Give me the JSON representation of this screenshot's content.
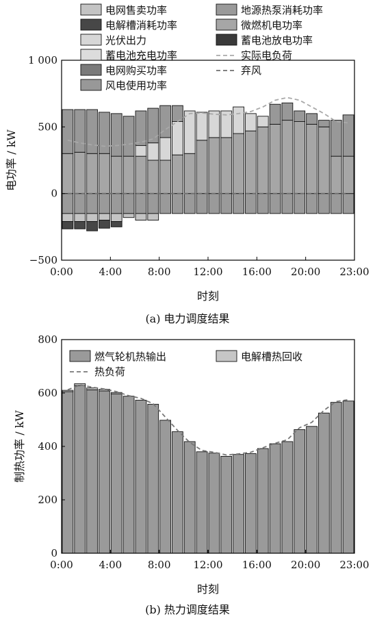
{
  "chart_data": [
    {
      "type": "bar",
      "title": "",
      "caption": "(a)  电力调度结果",
      "xlabel": "时刻",
      "ylabel": "电功率 / kW",
      "ylim": [
        -500,
        1000
      ],
      "yticks": [
        -500,
        0,
        500,
        1000
      ],
      "ytick_labels": [
        "−500",
        "0",
        "500",
        "1 000"
      ],
      "xticks": [
        0,
        4,
        8,
        12,
        16,
        20,
        23
      ],
      "xtick_labels": [
        "0:00",
        "4:00",
        "8:00",
        "12:00",
        "16:00",
        "20:00",
        "23:00"
      ],
      "hours": [
        0,
        1,
        2,
        3,
        4,
        5,
        6,
        7,
        8,
        9,
        10,
        11,
        12,
        13,
        14,
        15,
        16,
        17,
        18,
        19,
        20,
        21,
        22,
        23
      ],
      "legend_position": "top",
      "series": [
        {
          "name": "地源热泵消耗功率",
          "color": "#9a9a9a",
          "kind": "stack-neg",
          "values": [
            -150,
            -150,
            -150,
            -150,
            -150,
            -150,
            -150,
            -150,
            -150,
            -150,
            -150,
            -150,
            -150,
            -150,
            -150,
            -150,
            -150,
            -150,
            -150,
            -150,
            -150,
            -150,
            -150,
            -150
          ]
        },
        {
          "name": "电网售卖功率",
          "color": "#c4c4c4",
          "kind": "stack-neg",
          "values": [
            -60,
            -60,
            -60,
            -50,
            -60,
            -30,
            -50,
            -50,
            0,
            0,
            0,
            0,
            0,
            0,
            0,
            0,
            0,
            0,
            0,
            0,
            0,
            0,
            0,
            0
          ]
        },
        {
          "name": "电解槽消耗功率",
          "color": "#474747",
          "kind": "stack-neg",
          "values": [
            -55,
            -55,
            -70,
            -60,
            -40,
            0,
            0,
            0,
            0,
            0,
            0,
            0,
            0,
            0,
            0,
            0,
            0,
            0,
            0,
            0,
            0,
            0,
            0,
            0
          ]
        },
        {
          "name": "蓄电池充电功率",
          "color": "#dcdcdc",
          "kind": "stack-neg",
          "values": [
            0,
            0,
            0,
            0,
            0,
            0,
            0,
            0,
            0,
            0,
            0,
            0,
            0,
            0,
            0,
            0,
            0,
            0,
            0,
            0,
            0,
            0,
            0,
            0
          ]
        },
        {
          "name": "微燃机电功率",
          "color": "#a6a6a6",
          "kind": "stack-pos",
          "values": [
            300,
            310,
            300,
            300,
            280,
            280,
            280,
            250,
            250,
            290,
            300,
            400,
            420,
            420,
            450,
            470,
            500,
            520,
            550,
            540,
            520,
            500,
            280,
            280
          ]
        },
        {
          "name": "电网购买功率",
          "color": "#7a7a7a",
          "kind": "stack-pos",
          "values": [
            0,
            0,
            0,
            0,
            0,
            0,
            0,
            0,
            0,
            0,
            0,
            0,
            0,
            0,
            0,
            0,
            0,
            0,
            0,
            0,
            0,
            0,
            0,
            0
          ]
        },
        {
          "name": "蓄电池放电功率",
          "color": "#3a3a3a",
          "kind": "stack-pos",
          "values": [
            0,
            0,
            0,
            0,
            0,
            0,
            0,
            0,
            0,
            0,
            0,
            0,
            0,
            0,
            0,
            0,
            0,
            0,
            0,
            0,
            0,
            0,
            0,
            0
          ]
        },
        {
          "name": "光伏出力",
          "color": "#d7d7d7",
          "kind": "stack-pos",
          "values": [
            0,
            0,
            0,
            0,
            0,
            0,
            80,
            130,
            170,
            250,
            320,
            210,
            200,
            200,
            200,
            130,
            80,
            0,
            0,
            0,
            0,
            0,
            0,
            0
          ]
        },
        {
          "name": "风电使用功率",
          "color": "#989898",
          "kind": "stack-pos",
          "values": [
            330,
            320,
            330,
            310,
            320,
            300,
            260,
            260,
            240,
            120,
            0,
            0,
            0,
            0,
            0,
            0,
            0,
            150,
            130,
            80,
            80,
            50,
            270,
            310
          ]
        },
        {
          "name": "实际电负荷",
          "color": "#a9a9a9",
          "kind": "line",
          "values": [
            400,
            380,
            365,
            355,
            360,
            370,
            385,
            410,
            480,
            540,
            600,
            605,
            595,
            590,
            600,
            615,
            650,
            700,
            720,
            700,
            650,
            600,
            540,
            530
          ]
        },
        {
          "name": "弃风",
          "color": "#6e6e6e",
          "kind": "line",
          "values": [
            0,
            0,
            0,
            0,
            0,
            0,
            0,
            0,
            0,
            0,
            0,
            0,
            0,
            0,
            0,
            0,
            0,
            0,
            0,
            0,
            0,
            0,
            0,
            0
          ]
        }
      ]
    },
    {
      "type": "bar",
      "title": "",
      "caption": "(b)  热力调度结果",
      "xlabel": "时刻",
      "ylabel": "制热功率 / kW",
      "ylim": [
        0,
        800
      ],
      "yticks": [
        0,
        200,
        400,
        600,
        800
      ],
      "ytick_labels": [
        "0",
        "200",
        "400",
        "600",
        "800"
      ],
      "xticks": [
        0,
        4,
        8,
        12,
        16,
        20,
        23
      ],
      "xtick_labels": [
        "0:00",
        "4:00",
        "8:00",
        "12:00",
        "16:00",
        "20:00",
        "23:00"
      ],
      "hours": [
        0,
        1,
        2,
        3,
        4,
        5,
        6,
        7,
        8,
        9,
        10,
        11,
        12,
        13,
        14,
        15,
        16,
        17,
        18,
        19,
        20,
        21,
        22,
        23
      ],
      "legend_position": "top",
      "series": [
        {
          "name": "燃气轮机热输出",
          "color": "#9a9a9a",
          "kind": "stack-pos",
          "values": [
            605,
            628,
            612,
            608,
            597,
            588,
            573,
            558,
            498,
            455,
            418,
            380,
            375,
            363,
            370,
            373,
            392,
            410,
            418,
            463,
            475,
            525,
            565,
            570
          ]
        },
        {
          "name": "电解槽热回收",
          "color": "#c6c6c6",
          "kind": "stack-pos",
          "values": [
            5,
            7,
            7,
            6,
            5,
            0,
            0,
            0,
            0,
            0,
            0,
            0,
            0,
            0,
            0,
            0,
            0,
            0,
            0,
            0,
            0,
            0,
            0,
            0
          ]
        },
        {
          "name": "热负荷",
          "color": "#777777",
          "kind": "line",
          "values": [
            612,
            630,
            622,
            615,
            605,
            590,
            580,
            560,
            510,
            460,
            415,
            385,
            378,
            368,
            372,
            378,
            395,
            412,
            425,
            470,
            490,
            535,
            568,
            575
          ]
        }
      ]
    }
  ]
}
